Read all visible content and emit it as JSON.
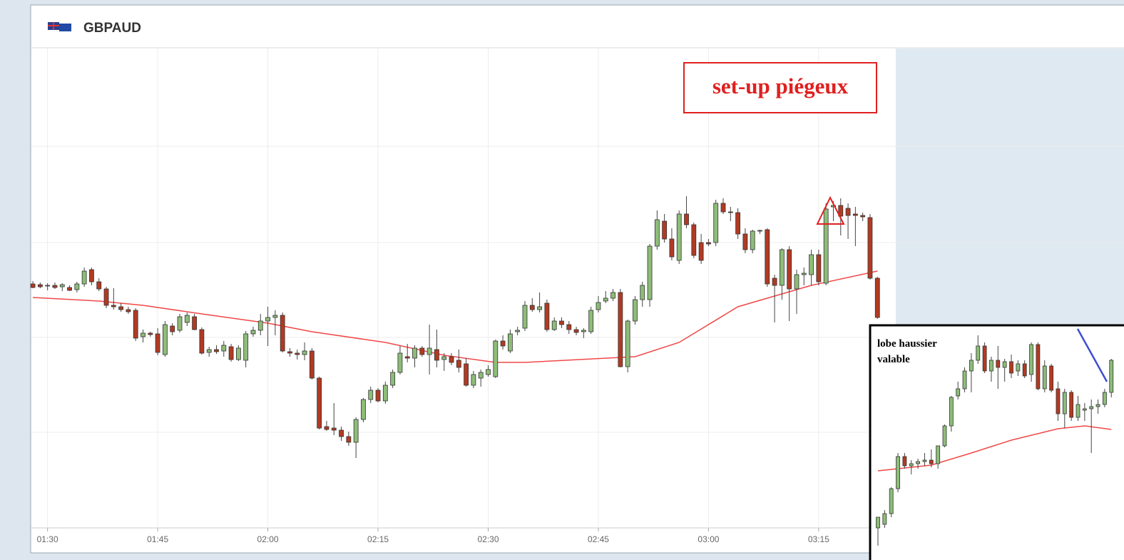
{
  "header": {
    "title": "GBPAUD"
  },
  "chart_data": [
    {
      "type": "candlestick",
      "annotation": "set-up piégeux",
      "xticks": [
        "01:30",
        "01:45",
        "02:00",
        "02:15",
        "02:30",
        "02:45",
        "03:00",
        "03:15"
      ],
      "xlim": [
        "01:27.8",
        "03:25.5"
      ],
      "ylim": [
        0,
        672
      ],
      "y_grid": [
        134,
        267,
        400,
        535
      ],
      "up_color": "#8dbd78",
      "down_color": "#b23a22",
      "ma_color": "#f04848",
      "candles": [
        [
          "01:28",
          342,
          346,
          336,
          337
        ],
        [
          "01:29",
          341,
          344,
          336,
          338
        ],
        [
          "01:30",
          339,
          343,
          333,
          340
        ],
        [
          "01:31",
          340,
          344,
          335,
          337
        ],
        [
          "01:32",
          338,
          343,
          332,
          341
        ],
        [
          "01:33",
          337,
          340,
          332,
          333
        ],
        [
          "01:34",
          334,
          345,
          330,
          342
        ],
        [
          "01:35",
          342,
          365,
          338,
          360
        ],
        [
          "01:36",
          362,
          365,
          340,
          345
        ],
        [
          "01:37",
          345,
          350,
          332,
          335
        ],
        [
          "01:38",
          335,
          338,
          308,
          312
        ],
        [
          "01:39",
          312,
          336,
          306,
          310
        ],
        [
          "01:40",
          310,
          315,
          303,
          306
        ],
        [
          "01:41",
          306,
          310,
          300,
          303
        ],
        [
          "01:42",
          305,
          308,
          262,
          266
        ],
        [
          "01:43",
          268,
          278,
          260,
          273
        ],
        [
          "01:44",
          273,
          275,
          268,
          271
        ],
        [
          "01:45",
          272,
          280,
          242,
          246
        ],
        [
          "01:46",
          243,
          290,
          240,
          285
        ],
        [
          "01:47",
          283,
          287,
          270,
          275
        ],
        [
          "01:48",
          277,
          300,
          274,
          296
        ],
        [
          "01:49",
          288,
          302,
          283,
          298
        ],
        [
          "01:50",
          296,
          300,
          277,
          278
        ],
        [
          "01:51",
          278,
          281,
          243,
          245
        ],
        [
          "01:52",
          246,
          254,
          240,
          250
        ],
        [
          "01:53",
          250,
          256,
          244,
          247
        ],
        [
          "01:54",
          248,
          262,
          240,
          256
        ],
        [
          "01:55",
          254,
          258,
          233,
          236
        ],
        [
          "01:56",
          236,
          256,
          234,
          252
        ],
        [
          "01:57",
          235,
          276,
          225,
          272
        ],
        [
          "01:58",
          272,
          282,
          268,
          277
        ],
        [
          "01:59",
          277,
          300,
          270,
          290
        ],
        [
          "02:00",
          290,
          310,
          255,
          295
        ],
        [
          "02:01",
          295,
          305,
          270,
          298
        ],
        [
          "02:02",
          298,
          302,
          246,
          248
        ],
        [
          "02:03",
          247,
          252,
          240,
          245
        ],
        [
          "02:04",
          245,
          250,
          236,
          243
        ],
        [
          "02:05",
          243,
          260,
          235,
          248
        ],
        [
          "02:06",
          248,
          252,
          208,
          210
        ],
        [
          "02:07",
          210,
          212,
          138,
          140
        ],
        [
          "02:08",
          142,
          150,
          136,
          138
        ],
        [
          "02:09",
          140,
          175,
          130,
          137
        ],
        [
          "02:10",
          137,
          142,
          122,
          128
        ],
        [
          "02:11",
          128,
          135,
          115,
          120
        ],
        [
          "02:12",
          120,
          155,
          98,
          152
        ],
        [
          "02:13",
          152,
          182,
          148,
          180
        ],
        [
          "02:14",
          180,
          198,
          175,
          193
        ],
        [
          "02:15",
          193,
          196,
          176,
          178
        ],
        [
          "02:16",
          178,
          205,
          174,
          200
        ],
        [
          "02:17",
          200,
          222,
          196,
          218
        ],
        [
          "02:18",
          218,
          255,
          215,
          245
        ],
        [
          "02:19",
          240,
          258,
          232,
          238
        ],
        [
          "02:20",
          238,
          256,
          225,
          252
        ],
        [
          "02:21",
          252,
          255,
          240,
          243
        ],
        [
          "02:22",
          243,
          285,
          215,
          252
        ],
        [
          "02:23",
          250,
          278,
          225,
          235
        ],
        [
          "02:24",
          236,
          245,
          220,
          240
        ],
        [
          "02:25",
          240,
          245,
          228,
          232
        ],
        [
          "02:26",
          235,
          250,
          218,
          225
        ],
        [
          "02:27",
          230,
          238,
          198,
          200
        ],
        [
          "02:28",
          200,
          220,
          196,
          215
        ],
        [
          "02:29",
          210,
          222,
          198,
          218
        ],
        [
          "02:30",
          215,
          228,
          212,
          222
        ],
        [
          "02:31",
          212,
          264,
          210,
          262
        ],
        [
          "02:32",
          262,
          270,
          250,
          255
        ],
        [
          "02:33",
          248,
          278,
          245,
          272
        ],
        [
          "02:34",
          275,
          282,
          270,
          277
        ],
        [
          "02:35",
          280,
          318,
          276,
          312
        ],
        [
          "02:36",
          312,
          322,
          303,
          306
        ],
        [
          "02:37",
          306,
          330,
          302,
          310
        ],
        [
          "02:38",
          315,
          320,
          275,
          278
        ],
        [
          "02:39",
          278,
          295,
          276,
          290
        ],
        [
          "02:40",
          290,
          295,
          280,
          285
        ],
        [
          "02:41",
          285,
          290,
          272,
          278
        ],
        [
          "02:42",
          278,
          282,
          270,
          274
        ],
        [
          "02:43",
          275,
          280,
          266,
          277
        ],
        [
          "02:44",
          275,
          310,
          272,
          305
        ],
        [
          "02:45",
          306,
          325,
          302,
          316
        ],
        [
          "02:46",
          318,
          332,
          315,
          322
        ],
        [
          "02:47",
          322,
          335,
          318,
          330
        ],
        [
          "02:48",
          330,
          335,
          225,
          226
        ],
        [
          "02:49",
          226,
          292,
          218,
          290
        ],
        [
          "02:50",
          290,
          325,
          285,
          320
        ],
        [
          "02:51",
          320,
          345,
          310,
          340
        ],
        [
          "02:52",
          320,
          398,
          310,
          395
        ],
        [
          "02:53",
          395,
          445,
          390,
          432
        ],
        [
          "02:54",
          430,
          440,
          400,
          405
        ],
        [
          "02:55",
          405,
          420,
          375,
          380
        ],
        [
          "02:56",
          375,
          445,
          370,
          440
        ],
        [
          "02:57",
          440,
          465,
          420,
          425
        ],
        [
          "02:58",
          425,
          428,
          378,
          382
        ],
        [
          "02:59",
          400,
          412,
          370,
          375
        ],
        [
          "03:00",
          400,
          405,
          395,
          398
        ],
        [
          "03:01",
          400,
          460,
          395,
          455
        ],
        [
          "03:02",
          455,
          462,
          440,
          443
        ],
        [
          "03:03",
          443,
          450,
          430,
          442
        ],
        [
          "03:04",
          442,
          448,
          405,
          412
        ],
        [
          "03:05",
          412,
          420,
          385,
          390
        ],
        [
          "03:06",
          390,
          418,
          385,
          416
        ],
        [
          "03:07",
          416,
          418,
          412,
          417
        ],
        [
          "03:08",
          418,
          420,
          338,
          342
        ],
        [
          "03:09",
          350,
          355,
          288,
          340
        ],
        [
          "03:10",
          340,
          392,
          320,
          390
        ],
        [
          "03:11",
          390,
          395,
          290,
          335
        ],
        [
          "03:12",
          335,
          362,
          300,
          355
        ],
        [
          "03:13",
          355,
          365,
          340,
          357
        ],
        [
          "03:14",
          355,
          390,
          340,
          383
        ],
        [
          "03:15",
          383,
          390,
          340,
          345
        ],
        [
          "03:16",
          343,
          455,
          340,
          447
        ],
        [
          "03:17",
          450,
          458,
          430,
          452
        ],
        [
          "03:18",
          452,
          462,
          410,
          437
        ],
        [
          "03:19",
          448,
          455,
          405,
          438
        ],
        [
          "03:20",
          440,
          450,
          395,
          438
        ],
        [
          "03:21",
          438,
          442,
          430,
          436
        ],
        [
          "03:22",
          435,
          440,
          348,
          350
        ],
        [
          "03:23",
          350,
          352,
          293,
          295
        ]
      ],
      "ma": [
        [
          "01:28",
          323
        ],
        [
          "01:37",
          318
        ],
        [
          "01:43",
          312
        ],
        [
          "01:51",
          300
        ],
        [
          "02:00",
          287
        ],
        [
          "02:06",
          275
        ],
        [
          "02:16",
          260
        ],
        [
          "02:24",
          242
        ],
        [
          "02:31",
          232
        ],
        [
          "02:35",
          232
        ],
        [
          "02:50",
          240
        ],
        [
          "02:56",
          260
        ],
        [
          "03:04",
          310
        ],
        [
          "03:14",
          340
        ],
        [
          "03:23",
          360
        ]
      ]
    },
    {
      "type": "candlestick",
      "annotation": "lobe haussier valable",
      "ylim": [
        0,
        330
      ],
      "up_color": "#8dbd78",
      "down_color": "#b23a22",
      "ma_color": "#f04848",
      "candles": [
        [
          45,
          60,
          20,
          60
        ],
        [
          50,
          70,
          45,
          65
        ],
        [
          65,
          102,
          60,
          100
        ],
        [
          100,
          150,
          95,
          145
        ],
        [
          145,
          150,
          128,
          132
        ],
        [
          132,
          140,
          120,
          135
        ],
        [
          135,
          142,
          128,
          138
        ],
        [
          138,
          150,
          132,
          140
        ],
        [
          140,
          155,
          130,
          135
        ],
        [
          135,
          160,
          128,
          160
        ],
        [
          160,
          190,
          158,
          188
        ],
        [
          188,
          230,
          180,
          228
        ],
        [
          230,
          250,
          225,
          240
        ],
        [
          240,
          270,
          235,
          265
        ],
        [
          265,
          290,
          235,
          280
        ],
        [
          280,
          315,
          275,
          300
        ],
        [
          300,
          305,
          262,
          265
        ],
        [
          265,
          285,
          250,
          280
        ],
        [
          280,
          300,
          240,
          270
        ],
        [
          270,
          282,
          250,
          278
        ],
        [
          278,
          288,
          255,
          262
        ],
        [
          265,
          280,
          258,
          275
        ],
        [
          275,
          280,
          255,
          258
        ],
        [
          260,
          305,
          250,
          302
        ],
        [
          302,
          305,
          238,
          240
        ],
        [
          240,
          280,
          235,
          272
        ],
        [
          272,
          275,
          235,
          238
        ],
        [
          240,
          250,
          195,
          205
        ],
        [
          205,
          240,
          185,
          235
        ],
        [
          235,
          238,
          195,
          200
        ],
        [
          200,
          230,
          195,
          218
        ],
        [
          210,
          220,
          195,
          212
        ],
        [
          212,
          225,
          150,
          215
        ],
        [
          215,
          225,
          205,
          218
        ],
        [
          218,
          240,
          214,
          235
        ],
        [
          235,
          282,
          228,
          280
        ]
      ],
      "ma": [
        [
          0,
          125
        ],
        [
          8,
          133
        ],
        [
          14,
          150
        ],
        [
          20,
          168
        ],
        [
          27,
          184
        ],
        [
          31,
          188
        ],
        [
          35,
          183
        ]
      ]
    }
  ]
}
